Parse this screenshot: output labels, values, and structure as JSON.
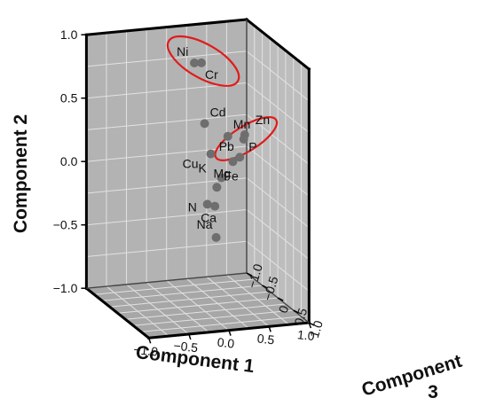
{
  "chart_data": {
    "type": "scatter",
    "projection": "3d",
    "axes": {
      "x": {
        "label": "Component 1",
        "range": [
          -1.0,
          1.0
        ],
        "ticks": [
          "−1.0",
          "−0.5",
          "0.0",
          "0.5",
          "1.0"
        ]
      },
      "y": {
        "label": "Component 2",
        "range": [
          -1.0,
          1.0
        ],
        "ticks": [
          "−1.0",
          "−0.5",
          "0.0",
          "0.5",
          "1.0"
        ]
      },
      "z": {
        "label_line1": "Component",
        "label_line2": "3",
        "range": [
          1.0,
          -1.0
        ],
        "ticks": [
          "1.0",
          "0.5",
          "0",
          "−0.5",
          "−1.0"
        ]
      }
    },
    "grid": true,
    "pane_color": "#bdbdbd",
    "point_color": "#6e6e6e",
    "highlight_color": "#e01b1b",
    "points": [
      {
        "label": "Ni",
        "x": 0.2,
        "y": 0.78,
        "z": -0.62
      },
      {
        "label": "Cr",
        "x": 0.28,
        "y": 0.78,
        "z": -0.6
      },
      {
        "label": "Cd",
        "x": 0.28,
        "y": 0.32,
        "z": -0.5
      },
      {
        "label": "Mn",
        "x": 0.54,
        "y": 0.22,
        "z": -0.42
      },
      {
        "label": "Cu",
        "x": 0.28,
        "y": 0.12,
        "z": -0.3
      },
      {
        "label": "Zn",
        "x": 0.82,
        "y": 0.18,
        "z": -0.6
      },
      {
        "label": "Pb",
        "x": 0.8,
        "y": 0.15,
        "z": -0.58
      },
      {
        "label": "P",
        "x": 0.68,
        "y": 0.05,
        "z": -0.4
      },
      {
        "label": "K",
        "x": 0.1,
        "y": 0.1,
        "z": 0.5
      },
      {
        "label": "Mg",
        "x": 0.42,
        "y": 0.12,
        "z": 0.05
      },
      {
        "label": "Ca",
        "x": 0.02,
        "y": -0.12,
        "z": 0.5
      },
      {
        "label": "Fe",
        "x": -0.12,
        "y": 0.12,
        "z": 0.92
      },
      {
        "label": "N",
        "x": -0.25,
        "y": 0.0,
        "z": 0.95
      },
      {
        "label": "Na",
        "x": -0.12,
        "y": -0.28,
        "z": 0.9
      }
    ],
    "highlight_groups": [
      {
        "members": [
          "Ni",
          "Cr"
        ]
      },
      {
        "members": [
          "Zn",
          "Pb"
        ]
      }
    ]
  }
}
